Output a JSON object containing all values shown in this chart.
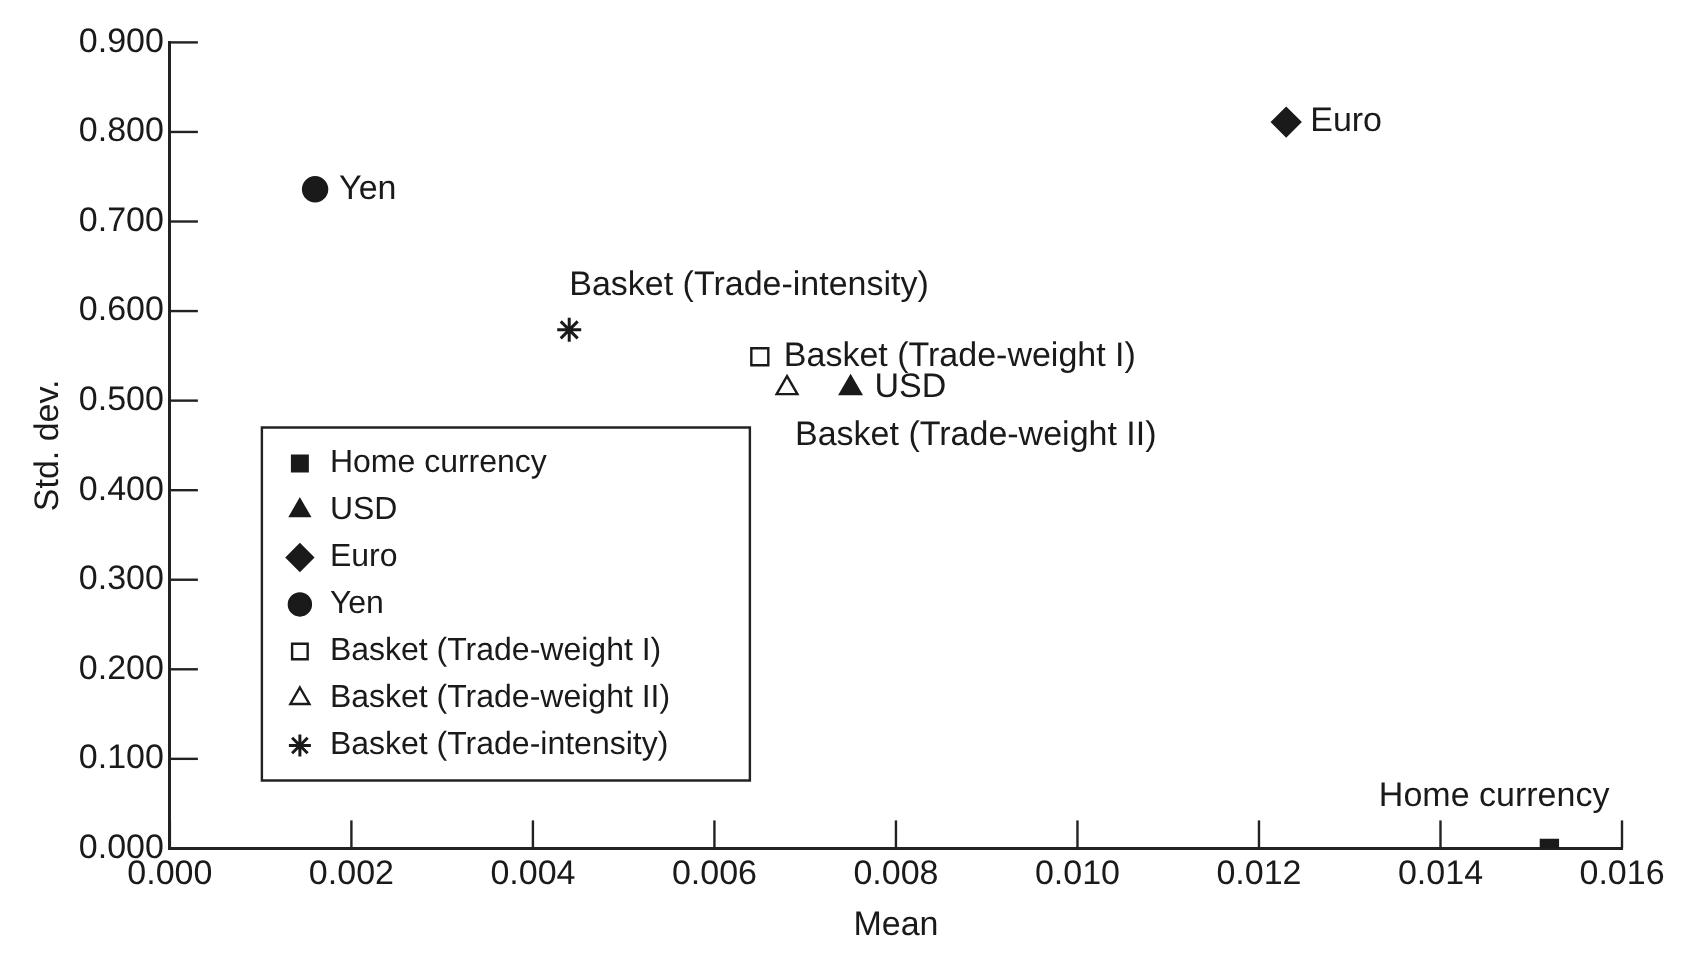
{
  "chart_data": {
    "type": "scatter",
    "xlabel": "Mean",
    "ylabel": "Std. dev.",
    "xlim": [
      0,
      0.016
    ],
    "ylim": [
      0,
      0.9
    ],
    "xticks": [
      {
        "value": 0,
        "label": "0.000"
      },
      {
        "value": 0.002,
        "label": "0.002"
      },
      {
        "value": 0.004,
        "label": "0.004"
      },
      {
        "value": 0.006,
        "label": "0.006"
      },
      {
        "value": 0.008,
        "label": "0.008"
      },
      {
        "value": 0.01,
        "label": "0.010"
      },
      {
        "value": 0.012,
        "label": "0.012"
      },
      {
        "value": 0.014,
        "label": "0.014"
      },
      {
        "value": 0.016,
        "label": "0.016"
      }
    ],
    "yticks": [
      {
        "value": 0,
        "label": "0.000"
      },
      {
        "value": 0.1,
        "label": "0.100"
      },
      {
        "value": 0.2,
        "label": "0.200"
      },
      {
        "value": 0.3,
        "label": "0.300"
      },
      {
        "value": 0.4,
        "label": "0.400"
      },
      {
        "value": 0.5,
        "label": "0.500"
      },
      {
        "value": 0.6,
        "label": "0.600"
      },
      {
        "value": 0.7,
        "label": "0.700"
      },
      {
        "value": 0.8,
        "label": "0.800"
      },
      {
        "value": 0.9,
        "label": "0.900"
      }
    ],
    "grid": false,
    "legend": "left",
    "series": [
      {
        "name": "Home currency",
        "color": "#1a1a1a",
        "marker": "square",
        "x": [
          0.0152
        ],
        "values": [
          0
        ]
      },
      {
        "name": "USD",
        "color": "#1a1a1a",
        "marker": "triangle",
        "x": [
          0.0075
        ],
        "values": [
          0.514
        ]
      },
      {
        "name": "Euro",
        "color": "#1a1a1a",
        "marker": "diamond",
        "x": [
          0.0123
        ],
        "values": [
          0.811
        ]
      },
      {
        "name": "Yen",
        "color": "#1a1a1a",
        "marker": "circle",
        "x": [
          0.0016
        ],
        "values": [
          0.736
        ]
      },
      {
        "name": "Basket (Trade-weight I)",
        "color": "#1a1a1a",
        "marker": "square",
        "x": [
          0.0065
        ],
        "values": [
          0.549
        ]
      },
      {
        "name": "Basket (Trade-weight II)",
        "color": "#1a1a1a",
        "marker": "triangle",
        "x": [
          0.0068
        ],
        "values": [
          0.514
        ]
      },
      {
        "name": "Basket (Trade-intensity)",
        "color": "#1a1a1a",
        "marker": "cross",
        "x": [
          0.0044
        ],
        "values": [
          0.579
        ]
      }
    ]
  }
}
